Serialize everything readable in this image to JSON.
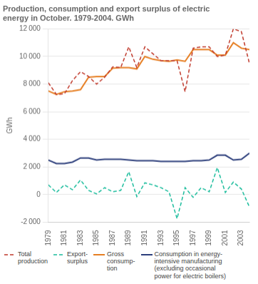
{
  "chart_data": {
    "type": "line",
    "title": "Production, consumption and export surplus of electric\nenergy in October. 1979-2004. GWh",
    "ylabel": "GWh",
    "x": [
      1979,
      1980,
      1981,
      1982,
      1983,
      1984,
      1985,
      1986,
      1987,
      1988,
      1989,
      1990,
      1991,
      1992,
      1993,
      1994,
      1995,
      1996,
      1997,
      1998,
      1999,
      2000,
      2001,
      2002,
      2003,
      2004
    ],
    "series": [
      {
        "name": "Total\nproduction",
        "color": "#C0392B",
        "line_style": "dashed",
        "values": [
          8100,
          7250,
          7300,
          8250,
          8900,
          8550,
          8000,
          8500,
          9250,
          9200,
          10700,
          9200,
          10700,
          10200,
          9700,
          9700,
          9700,
          7450,
          10600,
          10700,
          10700,
          10000,
          10100,
          12000,
          11800,
          9500
        ]
      },
      {
        "name": "Export-\nsurplus",
        "color": "#1ABC9C",
        "line_style": "dashed",
        "values": [
          700,
          150,
          700,
          350,
          1050,
          300,
          50,
          500,
          200,
          300,
          1650,
          -150,
          850,
          700,
          500,
          200,
          -1750,
          500,
          -200,
          500,
          200,
          1950,
          150,
          900,
          400,
          -900
        ]
      },
      {
        "name": "Gross\nconsump-\ntion",
        "color": "#E67E22",
        "line_style": "solid",
        "values": [
          7500,
          7250,
          7450,
          7500,
          7600,
          8500,
          8550,
          8550,
          9150,
          9200,
          9200,
          9100,
          10000,
          9800,
          9700,
          9650,
          9750,
          9650,
          10500,
          10500,
          10500,
          10100,
          10100,
          11000,
          10600,
          10500
        ]
      },
      {
        "name": "Consumption in energy-\nintensive manufacturing\n(excluding occasional\npower for electric boilers)",
        "color": "#2C3E7B",
        "line_style": "solid",
        "values": [
          2500,
          2250,
          2250,
          2350,
          2650,
          2650,
          2500,
          2550,
          2550,
          2550,
          2500,
          2450,
          2450,
          2450,
          2400,
          2400,
          2400,
          2400,
          2450,
          2450,
          2500,
          2850,
          2850,
          2500,
          2550,
          3000
        ]
      }
    ],
    "xlim": [
      1979,
      2004
    ],
    "xticks": [
      1979,
      1981,
      1983,
      1985,
      1987,
      1989,
      1991,
      1993,
      1995,
      1997,
      1999,
      2001,
      2003
    ],
    "ylim": [
      -2000,
      12000
    ],
    "yticks": [
      {
        "value": -2000,
        "label": "-2 000"
      },
      0,
      {
        "value": 2000,
        "label": "2 000"
      },
      {
        "value": 4000,
        "label": "4 000"
      },
      {
        "value": 6000,
        "label": "6 000"
      },
      {
        "value": 8000,
        "label": "8 000"
      },
      {
        "value": 10000,
        "label": "10 000"
      },
      {
        "value": 12000,
        "label": "12 000"
      }
    ],
    "grid": "y",
    "legend": "bottom"
  }
}
